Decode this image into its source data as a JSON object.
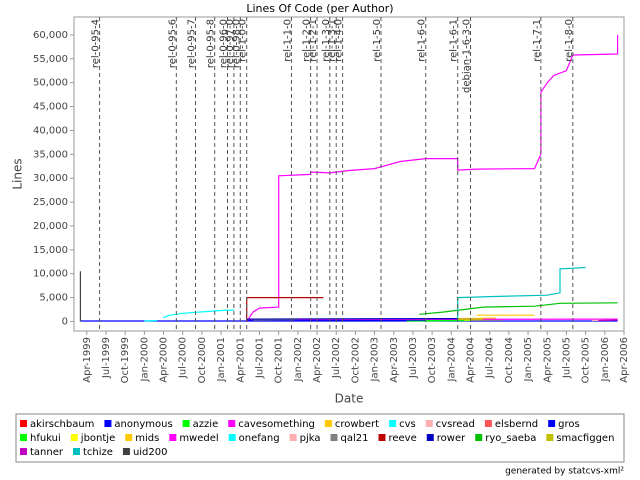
{
  "chart_data": {
    "type": "line",
    "title": "Lines Of Code (per Author)",
    "x_label": "Date",
    "y_label": "Lines",
    "credit": "generated by statcvs-xml²",
    "xlim": [
      "1999-02",
      "2006-04"
    ],
    "ylim": [
      -2000,
      63750
    ],
    "yticks": [
      0,
      {
        "value": 5000,
        "label": "5,000"
      },
      {
        "value": 10000,
        "label": "10,000"
      },
      {
        "value": 15000,
        "label": "15,000"
      },
      {
        "value": 20000,
        "label": "20,000"
      },
      {
        "value": 25000,
        "label": "25,000"
      },
      {
        "value": 30000,
        "label": "30,000"
      },
      {
        "value": 35000,
        "label": "35,000"
      },
      {
        "value": 40000,
        "label": "40,000"
      },
      {
        "value": 45000,
        "label": "45,000"
      },
      {
        "value": 50000,
        "label": "50,000"
      },
      {
        "value": 55000,
        "label": "55,000"
      },
      {
        "value": 60000,
        "label": "60,000"
      }
    ],
    "xticks": [
      {
        "value": "1999-04",
        "label": "Apr-1999"
      },
      {
        "value": "1999-07",
        "label": "Jul-1999"
      },
      {
        "value": "1999-10",
        "label": "Oct-1999"
      },
      {
        "value": "2000-01",
        "label": "Jan-2000"
      },
      {
        "value": "2000-04",
        "label": "Apr-2000"
      },
      {
        "value": "2000-07",
        "label": "Jul-2000"
      },
      {
        "value": "2000-10",
        "label": "Oct-2000"
      },
      {
        "value": "2001-01",
        "label": "Jan-2001"
      },
      {
        "value": "2001-04",
        "label": "Apr-2001"
      },
      {
        "value": "2001-07",
        "label": "Jul-2001"
      },
      {
        "value": "2001-10",
        "label": "Oct-2001"
      },
      {
        "value": "2002-01",
        "label": "Jan-2002"
      },
      {
        "value": "2002-04",
        "label": "Apr-2002"
      },
      {
        "value": "2002-07",
        "label": "Jul-2002"
      },
      {
        "value": "2002-10",
        "label": "Oct-2002"
      },
      {
        "value": "2003-01",
        "label": "Jan-2003"
      },
      {
        "value": "2003-04",
        "label": "Apr-2003"
      },
      {
        "value": "2003-07",
        "label": "Jul-2003"
      },
      {
        "value": "2003-10",
        "label": "Oct-2003"
      },
      {
        "value": "2004-01",
        "label": "Jan-2004"
      },
      {
        "value": "2004-04",
        "label": "Apr-2004"
      },
      {
        "value": "2004-07",
        "label": "Jul-2004"
      },
      {
        "value": "2004-10",
        "label": "Oct-2004"
      },
      {
        "value": "2005-01",
        "label": "Jan-2005"
      },
      {
        "value": "2005-04",
        "label": "Apr-2005"
      },
      {
        "value": "2005-07",
        "label": "Jul-2005"
      },
      {
        "value": "2005-10",
        "label": "Oct-2005"
      },
      {
        "value": "2006-01",
        "label": "Jan-2006"
      },
      {
        "value": "2006-04",
        "label": "Apr-2006"
      }
    ],
    "markers": [
      {
        "x": "1999-06",
        "label": "rel-0-95-4"
      },
      {
        "x": "2000-06",
        "label": "rel-0-95-6"
      },
      {
        "x": "2000-09",
        "label": "rel-0-95-7"
      },
      {
        "x": "2000-12",
        "label": "rel-0-95-8"
      },
      {
        "x": "2001-02",
        "label": "rel-0-96-0"
      },
      {
        "x": "2001-03",
        "label": "rel-0-97-0"
      },
      {
        "x": "2001-04",
        "label": "rel-0-98-0"
      },
      {
        "x": "2001-05",
        "label": "rel-1-0-0"
      },
      {
        "x": "2001-12",
        "label": "rel-1-1-0"
      },
      {
        "x": "2002-03",
        "label": "rel-1-2-0"
      },
      {
        "x": "2002-04",
        "label": "rel-1-2-1"
      },
      {
        "x": "2002-06",
        "label": "rel-1-3-0"
      },
      {
        "x": "2002-07",
        "label": "rel-1-3-1"
      },
      {
        "x": "2002-08",
        "label": "rel-1-4-0"
      },
      {
        "x": "2003-02",
        "label": "rel-1-5-0"
      },
      {
        "x": "2003-09",
        "label": "rel-1-6-0"
      },
      {
        "x": "2004-02",
        "label": "rel-1-6-1"
      },
      {
        "x": "2004-04",
        "label": "debian-1-6-3-0"
      },
      {
        "x": "2005-03",
        "label": "rel-1-7-1"
      },
      {
        "x": "2005-08",
        "label": "rel-1-8-0"
      }
    ],
    "series": [
      {
        "name": "akirschbaum",
        "color": "#ff0000",
        "x": [
          "2003-11",
          "2004-06"
        ],
        "values": [
          200,
          300
        ]
      },
      {
        "name": "anonymous",
        "color": "#0000ff",
        "x": [
          "1999-03",
          "2006-03"
        ],
        "values": [
          100,
          100
        ]
      },
      {
        "name": "azzie",
        "color": "#00ff00",
        "x": [
          "2003-06",
          "2004-04"
        ],
        "values": [
          100,
          200
        ]
      },
      {
        "name": "cavesomething",
        "color": "#ff00ff",
        "x": [
          "2001-05",
          "2001-06",
          "2001-07",
          "2001-10",
          "2001-10",
          "2002-03",
          "2002-03",
          "2002-06",
          "2002-09",
          "2003-01",
          "2003-05",
          "2003-09",
          "2004-02",
          "2004-02",
          "2004-05",
          "2005-02",
          "2005-03",
          "2005-03",
          "2005-04",
          "2005-05",
          "2005-07",
          "2005-08",
          "2006-03",
          "2006-03"
        ],
        "values": [
          0,
          2000,
          2800,
          3000,
          30500,
          30800,
          31300,
          31100,
          31600,
          32000,
          33500,
          34100,
          34100,
          31700,
          31900,
          32000,
          35000,
          48000,
          50000,
          51500,
          52500,
          55800,
          56000,
          60000
        ]
      },
      {
        "name": "crowbert",
        "color": "#ffc800",
        "x": [
          "2004-05",
          "2005-02"
        ],
        "values": [
          1300,
          1300
        ]
      },
      {
        "name": "cvs",
        "color": "#00ffff",
        "x": [
          "2000-01",
          "2000-03"
        ],
        "values": [
          100,
          200
        ]
      },
      {
        "name": "cvsread",
        "color": "#ffafaf",
        "x": [
          "2003-10",
          "2004-05"
        ],
        "values": [
          500,
          600
        ]
      },
      {
        "name": "elsbernd",
        "color": "#ff5555",
        "x": [
          "2003-12",
          "2004-04"
        ],
        "values": [
          300,
          400
        ]
      },
      {
        "name": "gros",
        "color": "#0000ff",
        "x": [
          "2001-05",
          "2004-02"
        ],
        "values": [
          200,
          300
        ]
      },
      {
        "name": "hfukui",
        "color": "#00ff00",
        "x": [
          "2003-09",
          "2004-03"
        ],
        "values": [
          200,
          250
        ]
      },
      {
        "name": "jbontje",
        "color": "#ffff00",
        "x": [
          "2004-03",
          "2004-09"
        ],
        "values": [
          300,
          350
        ]
      },
      {
        "name": "mids",
        "color": "#ffc800",
        "x": [
          "2004-02",
          "2004-08"
        ],
        "values": [
          600,
          700
        ]
      },
      {
        "name": "mwedel",
        "color": "#ff00ff",
        "x": [
          "2001-05",
          "2006-03"
        ],
        "values": [
          400,
          500
        ]
      },
      {
        "name": "onefang",
        "color": "#00ffff",
        "x": [
          "2000-04",
          "2000-05",
          "2000-07",
          "2000-10",
          "2001-01",
          "2001-03"
        ],
        "values": [
          800,
          1300,
          1700,
          2000,
          2300,
          2400
        ]
      },
      {
        "name": "pjka",
        "color": "#ffafaf",
        "x": [
          "2005-11",
          "2006-02"
        ],
        "values": [
          200,
          300
        ]
      },
      {
        "name": "qal21",
        "color": "#808080",
        "x": [
          "2001-06",
          "2002-01"
        ],
        "values": [
          300,
          400
        ]
      },
      {
        "name": "reeve",
        "color": "#c00000",
        "x": [
          "2001-05",
          "2001-05",
          "2002-05"
        ],
        "values": [
          0,
          5000,
          5000
        ]
      },
      {
        "name": "rower",
        "color": "#0000c0",
        "x": [
          "2001-05",
          "2004-02"
        ],
        "values": [
          500,
          600
        ]
      },
      {
        "name": "ryo_saeba",
        "color": "#00c000",
        "x": [
          "2003-08",
          "2003-12",
          "2004-06",
          "2005-02",
          "2005-06",
          "2006-03"
        ],
        "values": [
          1500,
          2000,
          3000,
          3200,
          3800,
          3900
        ]
      },
      {
        "name": "smacfiggen",
        "color": "#c0c000",
        "x": [
          "2004-02",
          "2004-06"
        ],
        "values": [
          400,
          500
        ]
      },
      {
        "name": "tanner",
        "color": "#c000c0",
        "x": [
          "2005-12",
          "2006-03"
        ],
        "values": [
          200,
          300
        ]
      },
      {
        "name": "tchize",
        "color": "#00c0c0",
        "x": [
          "2004-02",
          "2004-02",
          "2004-07",
          "2005-04",
          "2005-06",
          "2005-06",
          "2005-10"
        ],
        "values": [
          0,
          5000,
          5200,
          5500,
          6000,
          11000,
          11300
        ]
      },
      {
        "name": "uid200",
        "color": "#404040",
        "x": [
          "1999-03",
          "1999-03",
          "1999-03"
        ],
        "values": [
          0,
          10500,
          300
        ]
      }
    ]
  }
}
